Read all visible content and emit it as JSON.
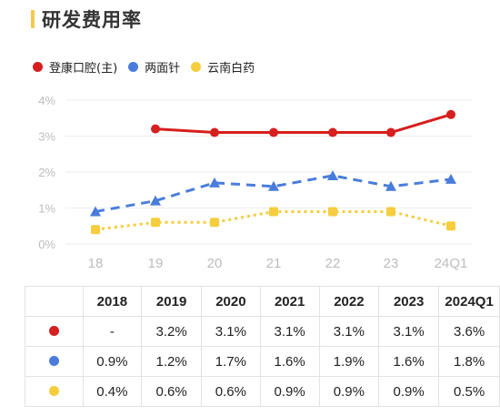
{
  "title": "研发费用率",
  "colors": {
    "title_accent": "#f2c94c"
  },
  "legend": [
    {
      "name": "登康口腔(主)",
      "color": "#d61f1f"
    },
    {
      "name": "两面针",
      "color": "#4a7ddb"
    },
    {
      "name": "云南白药",
      "color": "#f5cd3d"
    }
  ],
  "chart_data": {
    "type": "line",
    "x": [
      "18",
      "19",
      "20",
      "21",
      "22",
      "23",
      "24Q1"
    ],
    "ylim": [
      0,
      4
    ],
    "yticks": [
      "0%",
      "1%",
      "2%",
      "3%",
      "4%"
    ],
    "grid": true,
    "legend_position": "top-left",
    "series": [
      {
        "name": "登康口腔(主)",
        "color": "#d61f1f",
        "style": "solid",
        "marker": "circle",
        "values": [
          null,
          3.2,
          3.1,
          3.1,
          3.1,
          3.1,
          3.6
        ]
      },
      {
        "name": "两面针",
        "color": "#4a7ddb",
        "style": "dashed",
        "marker": "triangle",
        "values": [
          0.9,
          1.2,
          1.7,
          1.6,
          1.9,
          1.6,
          1.8
        ]
      },
      {
        "name": "云南白药",
        "color": "#f5cd3d",
        "style": "dotted",
        "marker": "square",
        "values": [
          0.4,
          0.6,
          0.6,
          0.9,
          0.9,
          0.9,
          0.5
        ]
      }
    ]
  },
  "table": {
    "headers": [
      "",
      "2018",
      "2019",
      "2020",
      "2021",
      "2022",
      "2023",
      "2024Q1"
    ],
    "rows": [
      {
        "color": "#d61f1f",
        "cells": [
          "-",
          "3.2%",
          "3.1%",
          "3.1%",
          "3.1%",
          "3.1%",
          "3.6%"
        ]
      },
      {
        "color": "#4a7ddb",
        "cells": [
          "0.9%",
          "1.2%",
          "1.7%",
          "1.6%",
          "1.9%",
          "1.6%",
          "1.8%"
        ]
      },
      {
        "color": "#f5cd3d",
        "cells": [
          "0.4%",
          "0.6%",
          "0.6%",
          "0.9%",
          "0.9%",
          "0.9%",
          "0.5%"
        ]
      }
    ]
  }
}
